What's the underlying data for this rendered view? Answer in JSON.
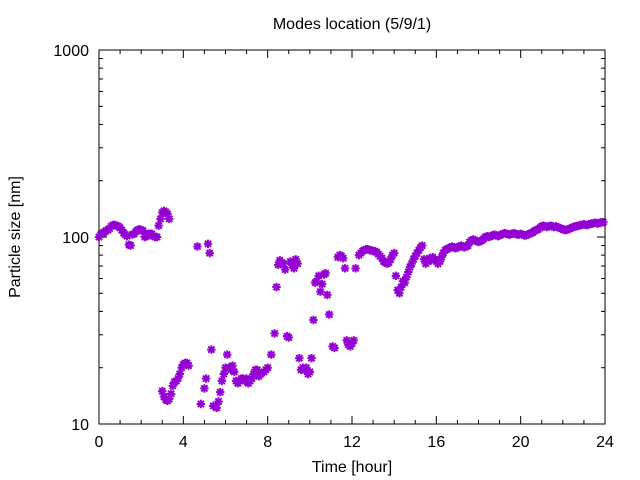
{
  "chart_data": {
    "type": "scatter",
    "title": "Modes location (5/9/1)",
    "xlabel": "Time [hour]",
    "ylabel": "Particle size [nm]",
    "xlim": [
      0,
      24
    ],
    "ylim": [
      10,
      1000
    ],
    "yscale": "log",
    "xticks": [
      0,
      4,
      8,
      12,
      16,
      20,
      24
    ],
    "yticks": [
      10,
      100,
      1000
    ],
    "grid": false,
    "legend": "none",
    "marker_color": "#9400d3",
    "marker": "star",
    "series": [
      {
        "points": [
          [
            0.0,
            100
          ],
          [
            0.08,
            103
          ],
          [
            0.17,
            105
          ],
          [
            0.25,
            106
          ],
          [
            0.33,
            108
          ],
          [
            0.42,
            109
          ],
          [
            0.5,
            111
          ],
          [
            0.58,
            114
          ],
          [
            0.67,
            116
          ],
          [
            0.75,
            116
          ],
          [
            0.83,
            115
          ],
          [
            0.92,
            114
          ],
          [
            1.0,
            112
          ],
          [
            1.08,
            109
          ],
          [
            1.17,
            105
          ],
          [
            1.25,
            103
          ],
          [
            1.33,
            101
          ],
          [
            1.42,
            91
          ],
          [
            1.5,
            90
          ],
          [
            1.58,
            103
          ],
          [
            1.67,
            104
          ],
          [
            1.75,
            107
          ],
          [
            1.83,
            109
          ],
          [
            1.92,
            110
          ],
          [
            2.0,
            109
          ],
          [
            2.08,
            108
          ],
          [
            2.17,
            100
          ],
          [
            2.25,
            101
          ],
          [
            2.33,
            104
          ],
          [
            2.42,
            104
          ],
          [
            2.5,
            104
          ],
          [
            2.58,
            101
          ],
          [
            2.67,
            100
          ],
          [
            2.75,
            100
          ],
          [
            2.83,
            115
          ],
          [
            2.92,
            125
          ],
          [
            3.0,
            135
          ],
          [
            3.08,
            138
          ],
          [
            3.17,
            136
          ],
          [
            3.25,
            133
          ],
          [
            3.33,
            125
          ],
          [
            3.0,
            15
          ],
          [
            3.08,
            14
          ],
          [
            3.17,
            13.5
          ],
          [
            3.25,
            13.3
          ],
          [
            3.33,
            13.6
          ],
          [
            3.42,
            14.5
          ],
          [
            3.5,
            16
          ],
          [
            3.58,
            16.8
          ],
          [
            3.67,
            17
          ],
          [
            3.75,
            17.5
          ],
          [
            3.83,
            18.5
          ],
          [
            3.92,
            20
          ],
          [
            4.0,
            20.8
          ],
          [
            4.08,
            21.2
          ],
          [
            4.17,
            21.2
          ],
          [
            4.25,
            20.5
          ],
          [
            4.67,
            89
          ],
          [
            5.17,
            92
          ],
          [
            5.25,
            82
          ],
          [
            4.83,
            12.8
          ],
          [
            5.0,
            15.5
          ],
          [
            5.08,
            17.5
          ],
          [
            5.33,
            25
          ],
          [
            5.42,
            12.5
          ],
          [
            5.58,
            12.2
          ],
          [
            5.67,
            13.2
          ],
          [
            5.75,
            14.8
          ],
          [
            5.83,
            17
          ],
          [
            5.92,
            18.5
          ],
          [
            6.0,
            20
          ],
          [
            6.08,
            23.5
          ],
          [
            6.17,
            20
          ],
          [
            6.25,
            19.5
          ],
          [
            6.33,
            20.5
          ],
          [
            6.42,
            19
          ],
          [
            6.5,
            17
          ],
          [
            6.58,
            16.5
          ],
          [
            6.67,
            17
          ],
          [
            6.75,
            17.5
          ],
          [
            6.83,
            17.5
          ],
          [
            6.92,
            17
          ],
          [
            7.0,
            17.5
          ],
          [
            7.08,
            16.5
          ],
          [
            7.17,
            17
          ],
          [
            7.25,
            17.5
          ],
          [
            7.33,
            18.5
          ],
          [
            7.42,
            19.5
          ],
          [
            7.5,
            19.5
          ],
          [
            7.58,
            18
          ],
          [
            7.67,
            18.5
          ],
          [
            7.83,
            19
          ],
          [
            7.92,
            19.5
          ],
          [
            8.0,
            20
          ],
          [
            8.17,
            23.5
          ],
          [
            8.33,
            30.5
          ],
          [
            8.42,
            54
          ],
          [
            8.5,
            71
          ],
          [
            8.58,
            75
          ],
          [
            8.67,
            73
          ],
          [
            8.75,
            72
          ],
          [
            8.83,
            67
          ],
          [
            8.92,
            29.5
          ],
          [
            9.0,
            29
          ],
          [
            9.08,
            74
          ],
          [
            9.17,
            71
          ],
          [
            9.25,
            68
          ],
          [
            9.33,
            76
          ],
          [
            9.42,
            72
          ],
          [
            9.5,
            22.5
          ],
          [
            9.58,
            19.5
          ],
          [
            9.67,
            20
          ],
          [
            9.75,
            19.5
          ],
          [
            9.83,
            20
          ],
          [
            9.92,
            18.5
          ],
          [
            10.0,
            19
          ],
          [
            10.08,
            22.5
          ],
          [
            10.17,
            36
          ],
          [
            10.25,
            57
          ],
          [
            10.33,
            58
          ],
          [
            10.42,
            62
          ],
          [
            10.5,
            51
          ],
          [
            10.58,
            56
          ],
          [
            10.67,
            63
          ],
          [
            10.75,
            64
          ],
          [
            10.83,
            49
          ],
          [
            10.92,
            38.5
          ],
          [
            11.08,
            26
          ],
          [
            11.17,
            25.5
          ],
          [
            11.33,
            78
          ],
          [
            11.42,
            80
          ],
          [
            11.5,
            79
          ],
          [
            11.58,
            77
          ],
          [
            11.67,
            68
          ],
          [
            11.75,
            28
          ],
          [
            11.83,
            26.5
          ],
          [
            11.92,
            26
          ],
          [
            12.0,
            27
          ],
          [
            12.08,
            28
          ],
          [
            12.17,
            68
          ],
          [
            12.33,
            80
          ],
          [
            12.42,
            82
          ],
          [
            12.5,
            84
          ],
          [
            12.58,
            85
          ],
          [
            12.67,
            86
          ],
          [
            12.75,
            86
          ],
          [
            12.83,
            85
          ],
          [
            12.92,
            85
          ],
          [
            13.0,
            84
          ],
          [
            13.08,
            84
          ],
          [
            13.17,
            83
          ],
          [
            13.25,
            81
          ],
          [
            13.33,
            79
          ],
          [
            13.42,
            77
          ],
          [
            13.5,
            74
          ],
          [
            13.58,
            73
          ],
          [
            13.67,
            72
          ],
          [
            13.75,
            73
          ],
          [
            13.83,
            76
          ],
          [
            13.92,
            80
          ],
          [
            14.0,
            82
          ],
          [
            14.08,
            62
          ],
          [
            14.17,
            52
          ],
          [
            14.25,
            50
          ],
          [
            14.33,
            54
          ],
          [
            14.42,
            58
          ],
          [
            14.5,
            57
          ],
          [
            14.58,
            61
          ],
          [
            14.67,
            65
          ],
          [
            14.75,
            69
          ],
          [
            14.83,
            72
          ],
          [
            14.92,
            76
          ],
          [
            15.0,
            79
          ],
          [
            15.08,
            82
          ],
          [
            15.17,
            85
          ],
          [
            15.25,
            88
          ],
          [
            15.33,
            90
          ],
          [
            15.42,
            76
          ],
          [
            15.5,
            72
          ],
          [
            15.58,
            74
          ],
          [
            15.67,
            77
          ],
          [
            15.75,
            75
          ],
          [
            15.83,
            78
          ],
          [
            15.92,
            76
          ],
          [
            16.0,
            74
          ],
          [
            16.08,
            72
          ],
          [
            16.17,
            74
          ],
          [
            16.25,
            78
          ],
          [
            16.33,
            82
          ],
          [
            16.42,
            85
          ],
          [
            16.5,
            86
          ],
          [
            16.58,
            87
          ],
          [
            16.67,
            88
          ],
          [
            16.75,
            89
          ],
          [
            16.83,
            88
          ],
          [
            16.92,
            87
          ],
          [
            17.0,
            88
          ],
          [
            17.08,
            89
          ],
          [
            17.17,
            90
          ],
          [
            17.25,
            89
          ],
          [
            17.33,
            88
          ],
          [
            17.42,
            89
          ],
          [
            17.5,
            90
          ],
          [
            17.58,
            94
          ],
          [
            17.67,
            96
          ],
          [
            17.75,
            97
          ],
          [
            17.83,
            96
          ],
          [
            17.92,
            95
          ],
          [
            18.0,
            94
          ],
          [
            18.08,
            95
          ],
          [
            18.17,
            96
          ],
          [
            18.25,
            98
          ],
          [
            18.33,
            100
          ],
          [
            18.42,
            101
          ],
          [
            18.5,
            100
          ],
          [
            18.58,
            101
          ],
          [
            18.67,
            102
          ],
          [
            18.75,
            103
          ],
          [
            18.83,
            102
          ],
          [
            18.92,
            101
          ],
          [
            19.0,
            102
          ],
          [
            19.08,
            103
          ],
          [
            19.17,
            104
          ],
          [
            19.25,
            105
          ],
          [
            19.33,
            104
          ],
          [
            19.42,
            103
          ],
          [
            19.5,
            103
          ],
          [
            19.58,
            104
          ],
          [
            19.67,
            105
          ],
          [
            19.75,
            104
          ],
          [
            19.83,
            103
          ],
          [
            19.92,
            103
          ],
          [
            20.0,
            104
          ],
          [
            20.08,
            103
          ],
          [
            20.17,
            102
          ],
          [
            20.25,
            102
          ],
          [
            20.33,
            103
          ],
          [
            20.42,
            104
          ],
          [
            20.5,
            105
          ],
          [
            20.58,
            106
          ],
          [
            20.67,
            108
          ],
          [
            20.75,
            109
          ],
          [
            20.83,
            110
          ],
          [
            20.92,
            112
          ],
          [
            21.0,
            114
          ],
          [
            21.08,
            115
          ],
          [
            21.17,
            114
          ],
          [
            21.25,
            113
          ],
          [
            21.33,
            114
          ],
          [
            21.42,
            115
          ],
          [
            21.5,
            114
          ],
          [
            21.58,
            113
          ],
          [
            21.67,
            114
          ],
          [
            21.75,
            113
          ],
          [
            21.83,
            112
          ],
          [
            21.92,
            111
          ],
          [
            22.0,
            110
          ],
          [
            22.08,
            109
          ],
          [
            22.17,
            109
          ],
          [
            22.25,
            110
          ],
          [
            22.33,
            111
          ],
          [
            22.42,
            112
          ],
          [
            22.5,
            113
          ],
          [
            22.58,
            114
          ],
          [
            22.67,
            114
          ],
          [
            22.75,
            115
          ],
          [
            22.83,
            116
          ],
          [
            22.92,
            116
          ],
          [
            23.0,
            117
          ],
          [
            23.08,
            116
          ],
          [
            23.17,
            116
          ],
          [
            23.25,
            117
          ],
          [
            23.33,
            118
          ],
          [
            23.42,
            118
          ],
          [
            23.5,
            119
          ],
          [
            23.58,
            119
          ],
          [
            23.67,
            118
          ],
          [
            23.75,
            119
          ],
          [
            23.83,
            120
          ],
          [
            23.92,
            120
          ]
        ]
      }
    ]
  }
}
